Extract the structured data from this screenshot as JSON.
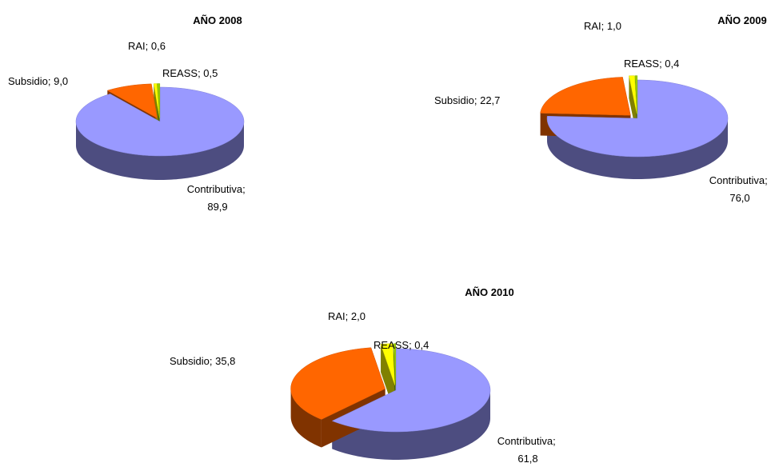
{
  "chart_data": [
    {
      "type": "pie",
      "title": "AÑO 2008",
      "values": [
        89.9,
        9.0,
        0.6,
        0.5
      ],
      "value_labels": [
        "Contributiva; 89,9",
        "Subsidio; 9,0",
        "RAI; 0,6",
        "REASS; 0,5"
      ],
      "colors": [
        "#9999ff",
        "#ff6600",
        "#ffff00",
        "#99cc00"
      ]
    },
    {
      "type": "pie",
      "title": "AÑO 2009",
      "values": [
        76.0,
        22.7,
        1.0,
        0.4
      ],
      "value_labels": [
        "Contributiva; 76,0",
        "Subsidio; 22,7",
        "RAI; 1,0",
        "REASS; 0,4"
      ],
      "colors": [
        "#9999ff",
        "#ff6600",
        "#ffff00",
        "#99cc00"
      ]
    },
    {
      "type": "pie",
      "title": "AÑO 2010",
      "values": [
        61.8,
        35.8,
        2.0,
        0.4
      ],
      "value_labels": [
        "Contributiva; 61,8",
        "Subsidio; 35,8",
        "RAI; 2,0",
        "REASS; 0,4"
      ],
      "colors": [
        "#9999ff",
        "#ff6600",
        "#ffff00",
        "#99cc00"
      ]
    }
  ]
}
